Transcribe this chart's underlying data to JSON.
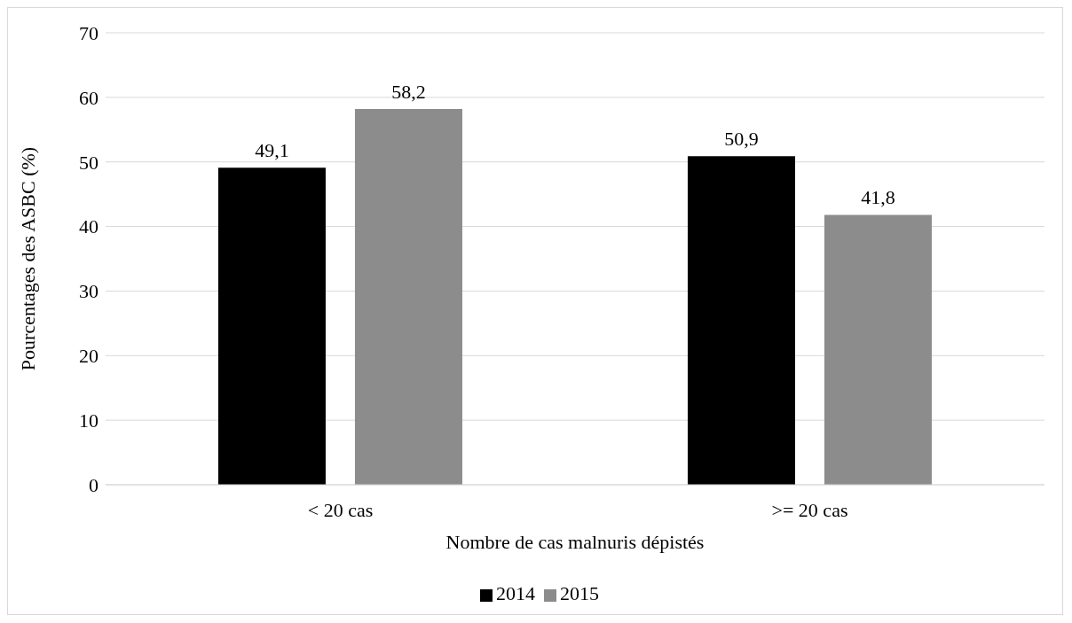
{
  "chart_data": {
    "type": "bar",
    "xlabel": "Nombre de cas malnuris dépistés",
    "ylabel": "Pourcentages des ASBC (%)",
    "categories": [
      "< 20 cas",
      ">= 20 cas"
    ],
    "series": [
      {
        "name": "2014",
        "color": "#000000",
        "values": [
          49.1,
          50.9
        ],
        "value_labels": [
          "49,1",
          "50,9"
        ]
      },
      {
        "name": "2015",
        "color": "#8c8c8c",
        "values": [
          58.2,
          41.8
        ],
        "value_labels": [
          "58,2",
          "41,8"
        ]
      }
    ],
    "ylim": [
      0,
      70
    ],
    "yticks": [
      0,
      10,
      20,
      30,
      40,
      50,
      60,
      70
    ],
    "grid": "y",
    "legend": "bottom"
  }
}
